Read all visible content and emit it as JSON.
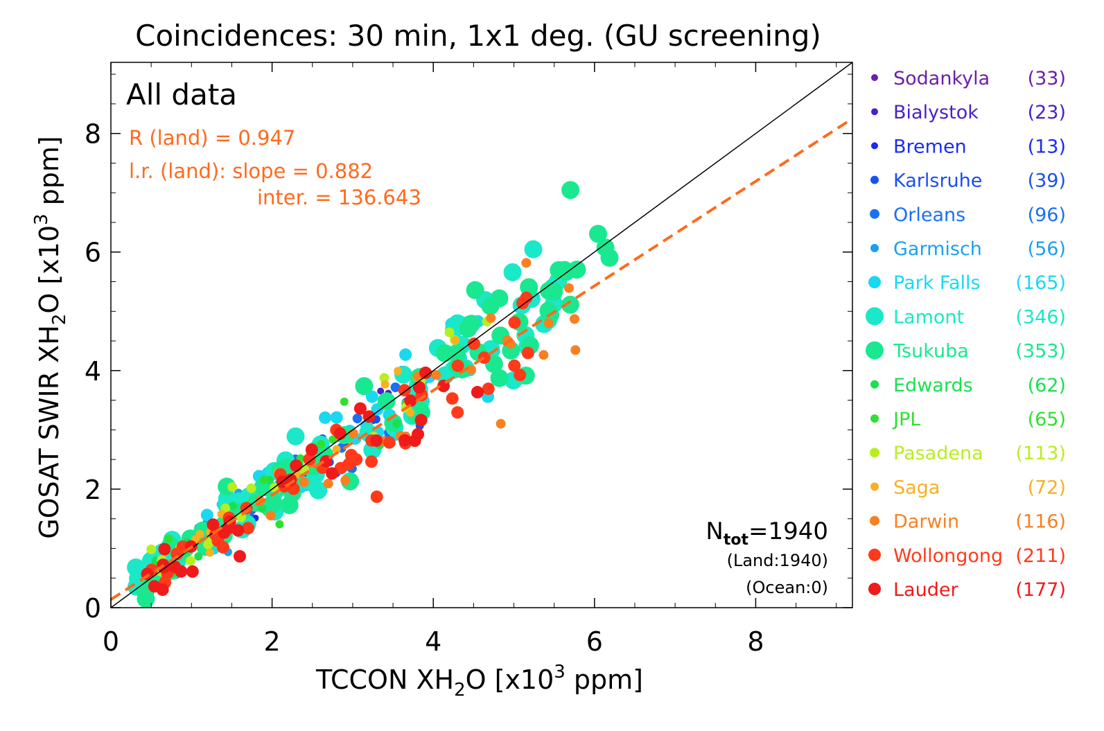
{
  "chart_data": {
    "type": "scatter",
    "title": "Coincidences: 30 min, 1x1 deg. (GU screening)",
    "xlabel": {
      "main": "TCCON XH",
      "sub": "2",
      "mid": "O [x10",
      "sup": "3",
      "end": " ppm]"
    },
    "ylabel": {
      "main": "GOSAT SWIR XH",
      "sub": "2",
      "mid": "O [x10",
      "sup": "3",
      "end": " ppm]"
    },
    "xlim": [
      0,
      9.2
    ],
    "ylim": [
      0,
      9.2
    ],
    "xticks": [
      "0",
      "2",
      "4",
      "6",
      "8"
    ],
    "yticks": [
      "0",
      "2",
      "4",
      "6",
      "8"
    ],
    "panel_label": "All data",
    "stats": {
      "r_text": "R (land) = 0.947",
      "slope_text": "l.r. (land): slope = 0.882",
      "inter_text": "inter. = 136.643",
      "slope": 0.882,
      "intercept_kppm": 0.137,
      "color": "#ff6a1c"
    },
    "counts": {
      "n_main": "N",
      "n_sub": "tot",
      "n_value": "=1940",
      "land": "(Land:1940)",
      "ocean": "(Ocean:0)"
    },
    "identity_line": {
      "from": [
        0,
        0
      ],
      "to": [
        9.2,
        9.2
      ],
      "color": "#000000"
    },
    "series": [
      {
        "name": "Sodankyla",
        "count": "(33)",
        "color": "#6b1fa8",
        "size": 5
      },
      {
        "name": "Bialystok",
        "count": "(23)",
        "color": "#4a20c8",
        "size": 5
      },
      {
        "name": "Bremen",
        "count": "(13)",
        "color": "#1a2cf0",
        "size": 5
      },
      {
        "name": "Karlsruhe",
        "count": "(39)",
        "color": "#1a4ff0",
        "size": 6
      },
      {
        "name": "Orleans",
        "count": "(96)",
        "color": "#1a70f0",
        "size": 7
      },
      {
        "name": "Garmisch",
        "count": "(56)",
        "color": "#1aa0f0",
        "size": 6
      },
      {
        "name": "Park Falls",
        "count": "(165)",
        "color": "#1ad8f0",
        "size": 9
      },
      {
        "name": "Lamont",
        "count": "(346)",
        "color": "#1ae8c8",
        "size": 13
      },
      {
        "name": "Tsukuba",
        "count": "(353)",
        "color": "#1ae890",
        "size": 13
      },
      {
        "name": "Edwards",
        "count": "(62)",
        "color": "#1ae050",
        "size": 6
      },
      {
        "name": "JPL",
        "count": "(65)",
        "color": "#30e030",
        "size": 6
      },
      {
        "name": "Pasadena",
        "count": "(113)",
        "color": "#b8ee20",
        "size": 7
      },
      {
        "name": "Saga",
        "count": "(72)",
        "color": "#f8b020",
        "size": 6
      },
      {
        "name": "Darwin",
        "count": "(116)",
        "color": "#f88020",
        "size": 7
      },
      {
        "name": "Wollongong",
        "count": "(211)",
        "color": "#ff3a1a",
        "size": 9
      },
      {
        "name": "Lauder",
        "count": "(177)",
        "color": "#f01a1a",
        "size": 9
      }
    ]
  }
}
